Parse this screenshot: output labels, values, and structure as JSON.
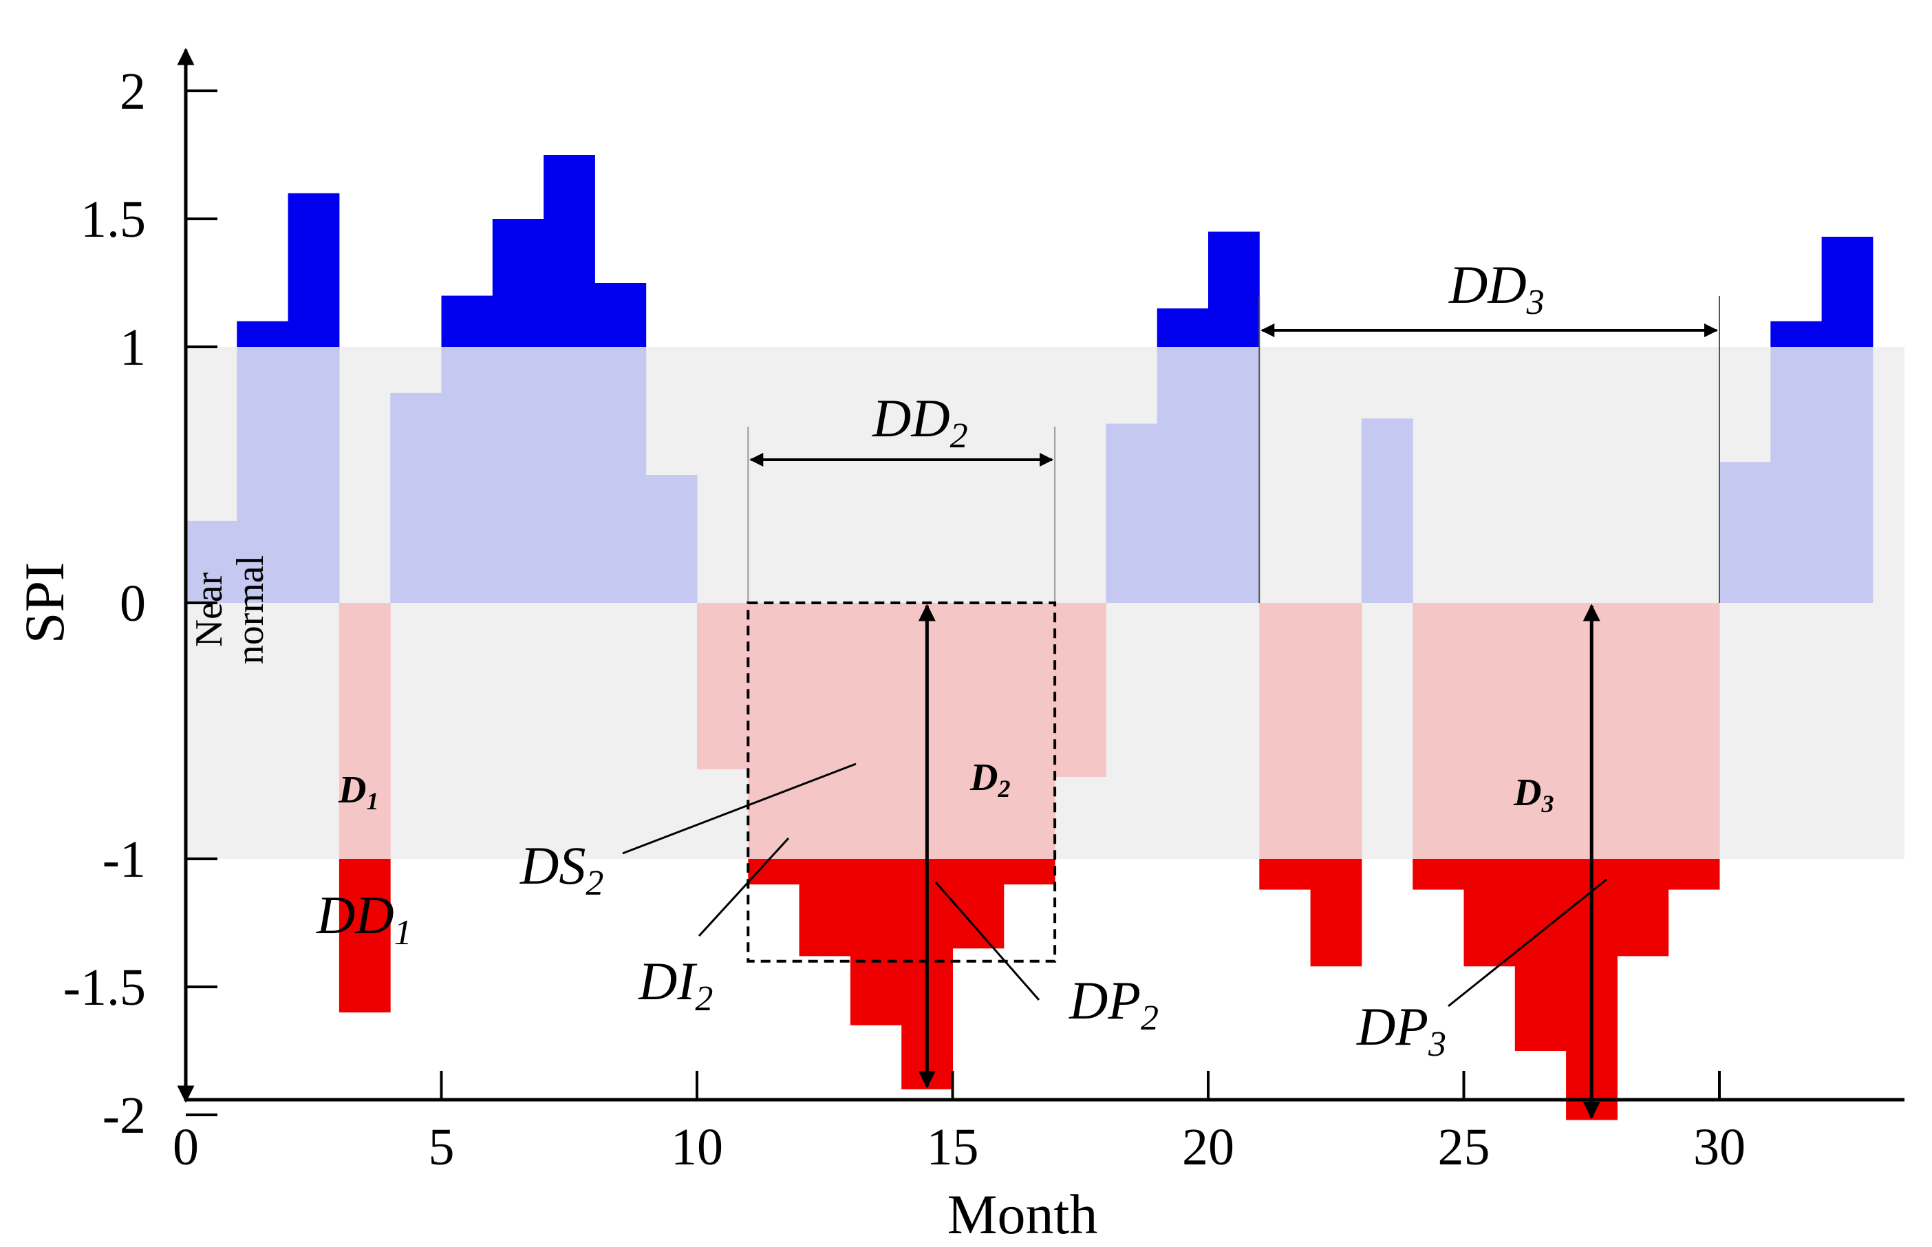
{
  "chart_data": {
    "type": "bar",
    "xlabel": "Month",
    "ylabel": "SPI",
    "xlim": [
      0,
      33.5
    ],
    "ylim": [
      -2.4,
      2.9
    ],
    "x_ticks": [
      0,
      5,
      10,
      15,
      20,
      25,
      30
    ],
    "y_ticks": [
      2,
      1.5,
      1,
      0,
      -1,
      -1.5,
      -2
    ],
    "x_tick_labels": [
      "0",
      "5",
      "10",
      "15",
      "20",
      "25",
      "30"
    ],
    "y_tick_labels": [
      "2",
      "1.5",
      "1",
      "0",
      "-1",
      "-1.5",
      "-2"
    ],
    "near_normal_band": {
      "from": -1,
      "to": 1,
      "label_line1": "Near",
      "label_line2": "normal"
    },
    "months": [
      0,
      1,
      2,
      3,
      4,
      5,
      6,
      7,
      8,
      9,
      10,
      11,
      12,
      13,
      14,
      15,
      16,
      17,
      18,
      19,
      20,
      21,
      22,
      23,
      24,
      25,
      26,
      27,
      28,
      29,
      30,
      31,
      32
    ],
    "values": [
      0.32,
      1.1,
      1.6,
      -1.6,
      0.82,
      1.2,
      1.5,
      1.75,
      1.25,
      0.5,
      -0.65,
      -1.1,
      -1.38,
      -1.65,
      -1.9,
      -1.35,
      -1.1,
      -0.68,
      0.7,
      1.15,
      1.45,
      -1.12,
      -1.42,
      0.72,
      -1.12,
      -1.42,
      -1.75,
      -2.02,
      -1.38,
      -1.12,
      0.55,
      1.1,
      1.43
    ],
    "colors": {
      "wet": "#0000ee",
      "wet_near": "#c5c8f0",
      "dry": "#ee0000",
      "dry_near": "#f5c6c6",
      "band": "#f0f0f0"
    },
    "annotations": {
      "dd1": {
        "main": "DD",
        "sub": "1"
      },
      "dd2": {
        "main": "DD",
        "sub": "2",
        "x_from": 11,
        "x_to": 17
      },
      "dd3": {
        "main": "DD",
        "sub": "3",
        "x_from": 21,
        "x_to": 30
      },
      "ds2": {
        "main": "DS",
        "sub": "2"
      },
      "di2": {
        "main": "DI",
        "sub": "2"
      },
      "dp2": {
        "main": "DP",
        "sub": "2"
      },
      "dp3": {
        "main": "DP",
        "sub": "3"
      },
      "d1": {
        "main": "D",
        "sub": "1"
      },
      "d2": {
        "main": "D",
        "sub": "2"
      },
      "d3": {
        "main": "D",
        "sub": "3"
      }
    }
  }
}
